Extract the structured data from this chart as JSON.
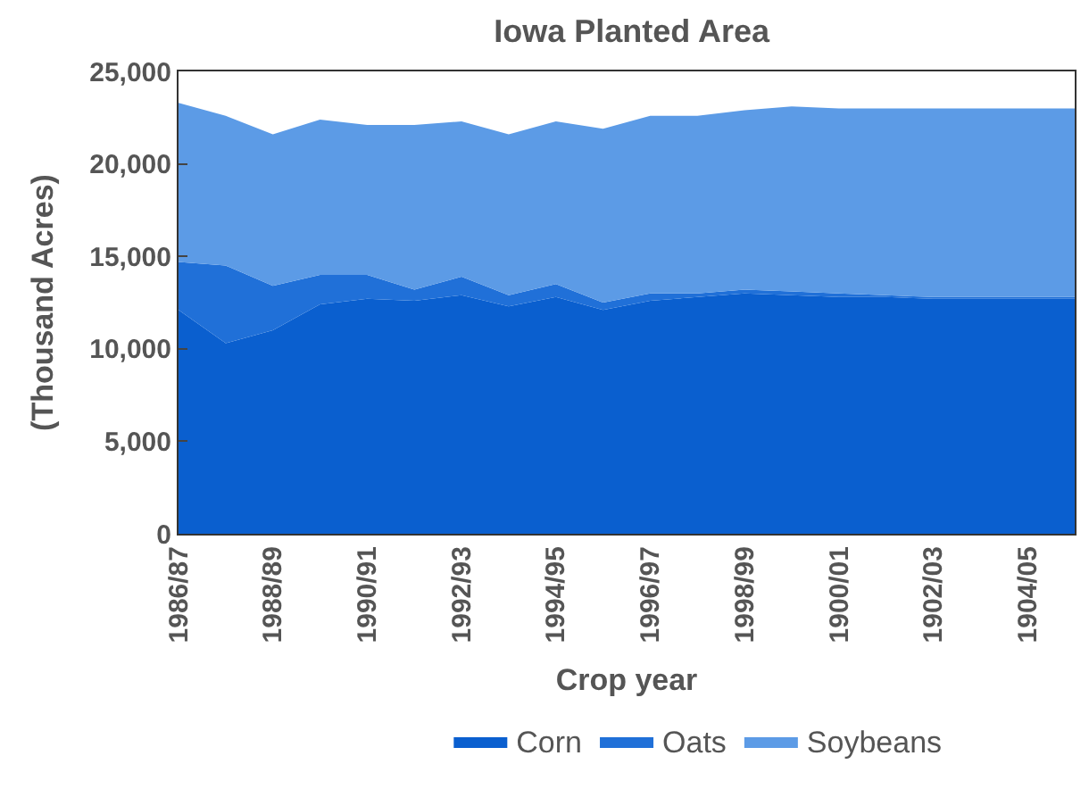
{
  "chart_data": {
    "type": "area",
    "title": "Iowa Planted Area",
    "xlabel": "Crop year",
    "ylabel": "(Thousand Acres)",
    "stacked": true,
    "categories": [
      "1986/87",
      null,
      "1988/89",
      null,
      "1990/91",
      null,
      "1992/93",
      null,
      "1994/95",
      null,
      "1996/97",
      null,
      "1998/99",
      null,
      "1900/01",
      null,
      "1902/03",
      null,
      "1904/05",
      null
    ],
    "series": [
      {
        "name": "Corn",
        "color": "#0a5fcf",
        "values": [
          12100,
          10300,
          11000,
          12400,
          12700,
          12600,
          12900,
          12300,
          12800,
          12100,
          12600,
          12800,
          13000,
          12900,
          12800,
          12800,
          12700,
          12700,
          12700,
          12700
        ]
      },
      {
        "name": "Oats",
        "color": "#2070d8",
        "values": [
          2600,
          4200,
          2400,
          1600,
          1300,
          600,
          1000,
          600,
          700,
          400,
          400,
          200,
          200,
          200,
          200,
          100,
          100,
          100,
          100,
          100
        ]
      },
      {
        "name": "Soybeans",
        "color": "#5c9be6",
        "values": [
          8600,
          8100,
          8200,
          8400,
          8100,
          8900,
          8400,
          8700,
          8800,
          9400,
          9600,
          9600,
          9700,
          10000,
          10000,
          10100,
          10200,
          10200,
          10200,
          10200
        ]
      }
    ],
    "ylim": [
      0,
      25000
    ],
    "yticks": [
      {
        "value": 0,
        "label": "0"
      },
      {
        "value": 5000,
        "label": "5,000"
      },
      {
        "value": 10000,
        "label": "10,000"
      },
      {
        "value": 15000,
        "label": "15,000"
      },
      {
        "value": 20000,
        "label": "20,000"
      },
      {
        "value": 25000,
        "label": "25,000"
      }
    ],
    "legend": "bottom"
  }
}
